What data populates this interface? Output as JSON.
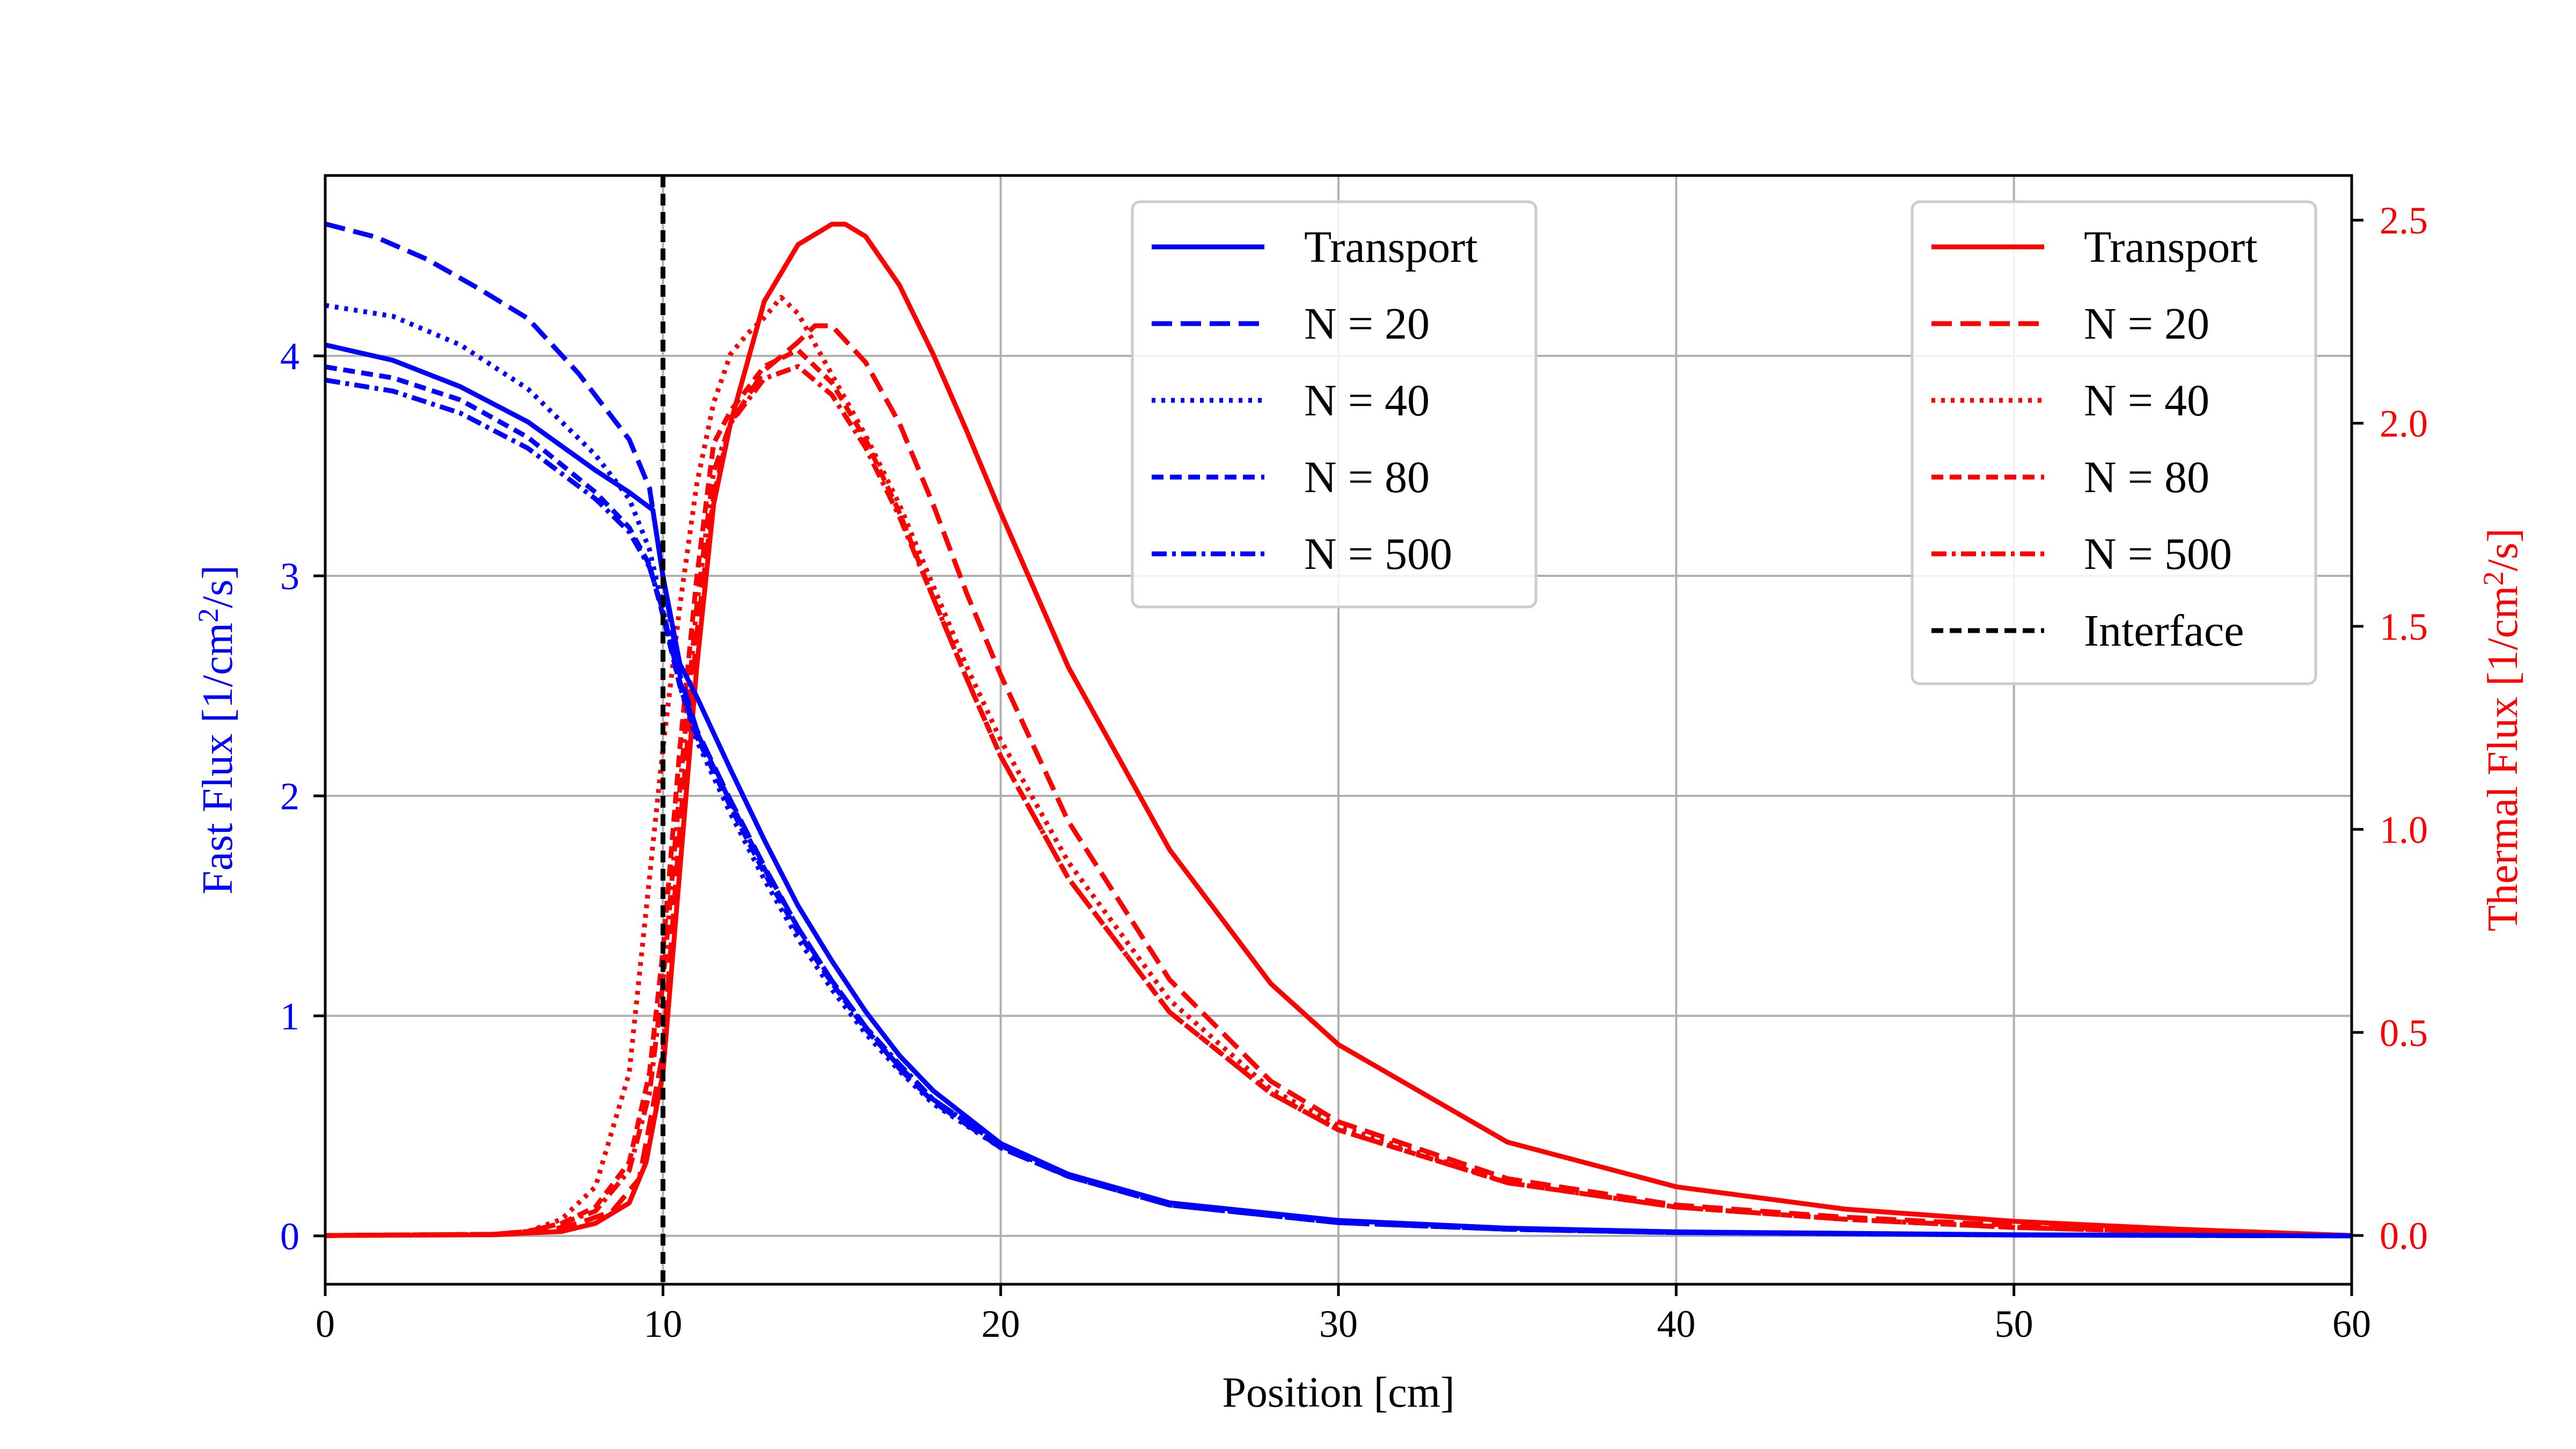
{
  "colors": {
    "fast": "#0000ff",
    "thermal": "#ff0000",
    "interface": "#000000",
    "grid": "#b0b0b0"
  },
  "chart_data": {
    "type": "line",
    "xlabel": "Position [cm]",
    "ylabel_left": "Fast Flux [1/cm",
    "ylabel_left_sup": "2",
    "ylabel_left_end": "/s]",
    "ylabel_right": "Thermal Flux [1/cm",
    "ylabel_right_sup": "2",
    "ylabel_right_end": "/s]",
    "xlim": [
      0,
      60
    ],
    "ylim_left": [
      -0.22,
      4.82
    ],
    "ylim_right": [
      -0.12,
      2.61
    ],
    "xticks": [
      "0",
      "10",
      "20",
      "30",
      "40",
      "50",
      "60"
    ],
    "yticks_left": [
      "0",
      "1",
      "2",
      "3",
      "4"
    ],
    "yticks_right": [
      "0.0",
      "0.5",
      "1.0",
      "1.5",
      "2.0",
      "2.5"
    ],
    "grid": true,
    "interface_x": 10,
    "legend_left": {
      "placement": "top-center",
      "entries": [
        "Transport",
        "N = 20",
        "N = 40",
        "N = 80",
        "N = 500"
      ]
    },
    "legend_right": {
      "placement": "top-right",
      "entries": [
        "Transport",
        "N = 20",
        "N = 40",
        "N = 80",
        "N = 500",
        "Interface"
      ]
    },
    "series": [
      {
        "name": "Transport",
        "axis": "left",
        "style": "solid",
        "x": [
          0,
          2,
          4,
          6,
          8,
          9,
          9.7,
          10,
          10.5,
          11,
          12,
          13,
          14,
          15,
          16,
          17,
          18,
          20,
          22,
          25,
          30,
          35,
          40,
          50,
          60
        ],
        "y": [
          4.05,
          3.98,
          3.86,
          3.7,
          3.48,
          3.38,
          3.3,
          3.0,
          2.6,
          2.45,
          2.12,
          1.8,
          1.5,
          1.25,
          1.02,
          0.82,
          0.66,
          0.42,
          0.28,
          0.15,
          0.07,
          0.035,
          0.018,
          0.005,
          0.0
        ]
      },
      {
        "name": "N = 20",
        "axis": "left",
        "style": "dashed-long",
        "x": [
          0,
          1.5,
          3,
          4.5,
          6,
          7.5,
          9,
          9.6,
          10,
          10.5,
          11,
          12,
          13,
          14,
          15,
          16,
          17,
          18,
          20,
          22,
          25,
          30,
          35,
          40,
          50,
          60
        ],
        "y": [
          4.6,
          4.54,
          4.44,
          4.31,
          4.17,
          3.92,
          3.62,
          3.4,
          3.0,
          2.55,
          2.3,
          1.98,
          1.68,
          1.4,
          1.16,
          0.95,
          0.76,
          0.61,
          0.4,
          0.27,
          0.14,
          0.06,
          0.03,
          0.015,
          0.004,
          0.0
        ]
      },
      {
        "name": "N = 40",
        "axis": "left",
        "style": "dotted",
        "x": [
          0,
          2,
          4,
          6,
          8,
          9,
          9.6,
          10,
          10.5,
          11,
          12,
          13,
          14,
          15,
          16,
          17,
          18,
          20,
          22,
          25,
          30,
          35,
          40,
          50,
          60
        ],
        "y": [
          4.23,
          4.18,
          4.05,
          3.85,
          3.55,
          3.35,
          3.12,
          2.85,
          2.5,
          2.25,
          1.92,
          1.62,
          1.35,
          1.12,
          0.92,
          0.75,
          0.6,
          0.4,
          0.27,
          0.14,
          0.06,
          0.03,
          0.015,
          0.004,
          0.0
        ]
      },
      {
        "name": "N = 80",
        "axis": "left",
        "style": "dashed",
        "x": [
          0,
          2,
          4,
          6,
          8,
          9,
          9.6,
          10,
          10.5,
          11,
          12,
          13,
          14,
          15,
          16,
          17,
          18,
          20,
          22,
          25,
          30,
          35,
          40,
          50,
          60
        ],
        "y": [
          3.95,
          3.9,
          3.8,
          3.63,
          3.38,
          3.22,
          3.05,
          2.82,
          2.5,
          2.27,
          1.95,
          1.65,
          1.38,
          1.15,
          0.94,
          0.77,
          0.62,
          0.41,
          0.27,
          0.14,
          0.06,
          0.03,
          0.015,
          0.004,
          0.0
        ]
      },
      {
        "name": "N = 500",
        "axis": "left",
        "style": "dashdot",
        "x": [
          0,
          2,
          4,
          6,
          8,
          9,
          9.6,
          10,
          10.5,
          11,
          12,
          13,
          14,
          15,
          16,
          17,
          18,
          20,
          22,
          25,
          30,
          35,
          40,
          50,
          60
        ],
        "y": [
          3.89,
          3.84,
          3.74,
          3.58,
          3.35,
          3.2,
          3.04,
          2.84,
          2.52,
          2.29,
          1.97,
          1.67,
          1.4,
          1.16,
          0.95,
          0.78,
          0.62,
          0.41,
          0.27,
          0.14,
          0.06,
          0.03,
          0.015,
          0.004,
          0.0
        ]
      },
      {
        "name": "Transport",
        "axis": "right",
        "style": "solid",
        "x": [
          0,
          5,
          7,
          8,
          9,
          9.5,
          10,
          10.5,
          11,
          11.5,
          12,
          13,
          14,
          15,
          15.4,
          16,
          17,
          18,
          19,
          20,
          22,
          25,
          28,
          30,
          35,
          40,
          45,
          50,
          55,
          60
        ],
        "y": [
          0.0,
          0.002,
          0.01,
          0.03,
          0.08,
          0.18,
          0.4,
          0.9,
          1.4,
          1.8,
          2.0,
          2.3,
          2.44,
          2.49,
          2.49,
          2.46,
          2.34,
          2.17,
          1.98,
          1.78,
          1.4,
          0.95,
          0.62,
          0.47,
          0.23,
          0.12,
          0.065,
          0.035,
          0.015,
          0.0
        ]
      },
      {
        "name": "N = 20",
        "axis": "right",
        "style": "dashed-long",
        "x": [
          0,
          5,
          6.5,
          7.5,
          8.5,
          9.3,
          10,
          10.5,
          11,
          11.5,
          12,
          13,
          14,
          14.5,
          15,
          16,
          17,
          18,
          19,
          20,
          22,
          25,
          28,
          30,
          35,
          40,
          45,
          50,
          55,
          60
        ],
        "y": [
          0.0,
          0.003,
          0.01,
          0.03,
          0.06,
          0.14,
          0.45,
          1.0,
          1.48,
          1.82,
          2.0,
          2.13,
          2.2,
          2.24,
          2.24,
          2.15,
          2.0,
          1.8,
          1.58,
          1.38,
          1.02,
          0.63,
          0.38,
          0.28,
          0.14,
          0.075,
          0.045,
          0.025,
          0.01,
          0.0
        ]
      },
      {
        "name": "N = 40",
        "axis": "right",
        "style": "dotted",
        "x": [
          0,
          5,
          6,
          7,
          8,
          9,
          9.5,
          10,
          10.5,
          11,
          11.5,
          12,
          12.5,
          13,
          13.5,
          14,
          15,
          16,
          17,
          18,
          19,
          20,
          22,
          25,
          28,
          30,
          35,
          40,
          45,
          50,
          55,
          60
        ],
        "y": [
          0.0,
          0.003,
          0.01,
          0.04,
          0.12,
          0.4,
          0.8,
          1.2,
          1.55,
          1.85,
          2.05,
          2.17,
          2.22,
          2.26,
          2.31,
          2.27,
          2.12,
          1.97,
          1.8,
          1.6,
          1.4,
          1.22,
          0.92,
          0.58,
          0.36,
          0.27,
          0.13,
          0.07,
          0.04,
          0.02,
          0.008,
          0.0
        ]
      },
      {
        "name": "N = 80",
        "axis": "right",
        "style": "dashed",
        "x": [
          0,
          5,
          6,
          7,
          8,
          9,
          9.6,
          10,
          10.5,
          11,
          11.5,
          12,
          13,
          14,
          15,
          16,
          17,
          18,
          19,
          20,
          22,
          25,
          28,
          30,
          35,
          40,
          45,
          50,
          55,
          60
        ],
        "y": [
          0.0,
          0.003,
          0.01,
          0.03,
          0.07,
          0.18,
          0.4,
          0.7,
          1.2,
          1.62,
          1.95,
          2.03,
          2.14,
          2.18,
          2.1,
          1.96,
          1.78,
          1.57,
          1.37,
          1.18,
          0.88,
          0.55,
          0.35,
          0.26,
          0.13,
          0.07,
          0.04,
          0.02,
          0.008,
          0.0
        ]
      },
      {
        "name": "N = 500",
        "axis": "right",
        "style": "dashdot",
        "x": [
          0,
          5,
          6,
          7,
          8,
          9,
          9.6,
          10,
          10.5,
          11,
          11.5,
          12,
          13,
          14,
          15,
          16,
          17,
          18,
          19,
          20,
          22,
          25,
          28,
          30,
          35,
          40,
          45,
          50,
          55,
          60
        ],
        "y": [
          0.0,
          0.003,
          0.01,
          0.03,
          0.06,
          0.16,
          0.35,
          0.62,
          1.1,
          1.55,
          1.88,
          2.0,
          2.11,
          2.14,
          2.07,
          1.94,
          1.77,
          1.57,
          1.37,
          1.18,
          0.88,
          0.55,
          0.35,
          0.26,
          0.13,
          0.07,
          0.04,
          0.02,
          0.008,
          0.0
        ]
      }
    ]
  }
}
